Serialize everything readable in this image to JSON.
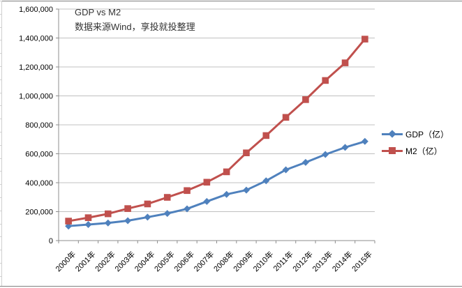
{
  "chart": {
    "title": "GDP vs M2",
    "subtitle": "数据来源Wind，享投就投整理"
  },
  "chart_data": {
    "type": "line",
    "title": "GDP vs M2",
    "subtitle": "数据来源Wind，享投就投整理",
    "xlabel": "",
    "ylabel": "",
    "categories": [
      "2000年",
      "2001年",
      "2002年",
      "2003年",
      "2004年",
      "2005年",
      "2006年",
      "2007年",
      "2008年",
      "2009年",
      "2010年",
      "2011年",
      "2012年",
      "2013年",
      "2014年",
      "2015年"
    ],
    "series": [
      {
        "id": "gdp",
        "name": "GDP（亿）",
        "color": "#4F81BD",
        "marker": "diamond",
        "values": [
          100280,
          110863,
          121717,
          137422,
          161840,
          187319,
          219439,
          270232,
          319516,
          349081,
          413030,
          489301,
          540367,
          595244,
          643974,
          685506
        ]
      },
      {
        "id": "m2",
        "name": "M2（亿）",
        "color": "#C0504D",
        "marker": "square",
        "values": [
          134610,
          158302,
          185007,
          221223,
          253208,
          298756,
          345578,
          403442,
          475167,
          606225,
          725852,
          851591,
          974149,
          1106525,
          1228375,
          1392278
        ]
      }
    ],
    "ylim": [
      0,
      1600000
    ],
    "ytick_step": 200000,
    "y_ticks": [
      "0",
      "200,000",
      "400,000",
      "600,000",
      "800,000",
      "1,000,000",
      "1,200,000",
      "1,400,000",
      "1,600,000"
    ],
    "grid": "horizontal",
    "legend_position": "right"
  },
  "colors": {
    "gdp": "#4F81BD",
    "m2": "#C0504D",
    "gridline": "#C0C0C0",
    "axis": "#8C8C8C",
    "text": "#000000",
    "background": "#FFFFFF"
  }
}
